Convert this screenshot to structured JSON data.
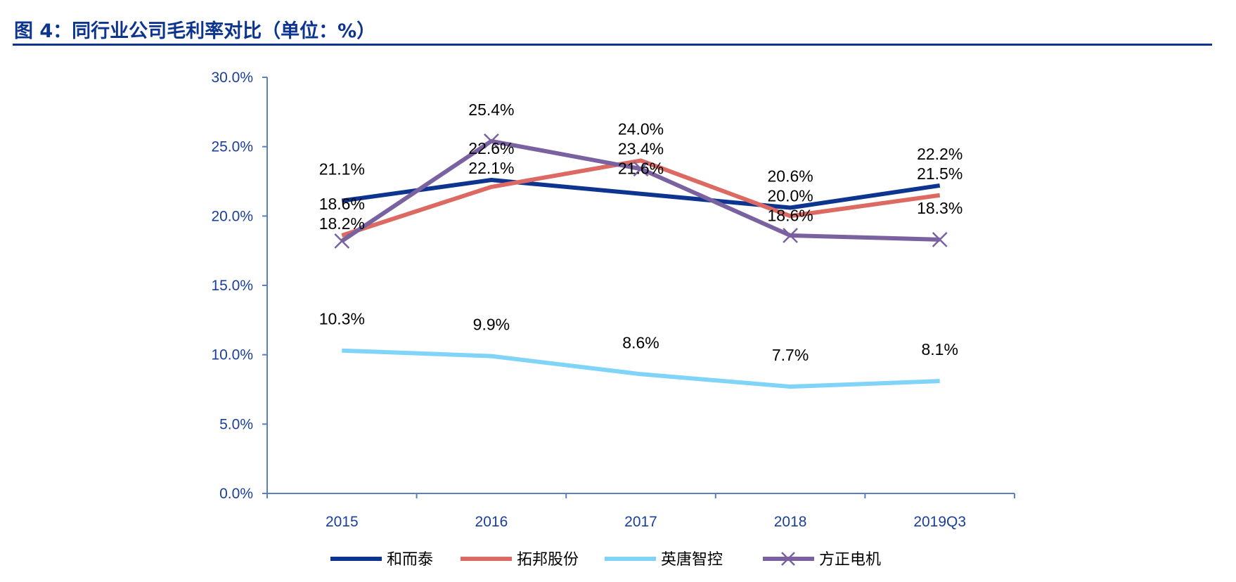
{
  "chart_data": {
    "type": "line",
    "title": "图 4：同行业公司毛利率对比（单位：%）",
    "categories": [
      "2015",
      "2016",
      "2017",
      "2018",
      "2019Q3"
    ],
    "ylim": [
      0,
      30
    ],
    "yticks": [
      "0.0%",
      "5.0%",
      "10.0%",
      "15.0%",
      "20.0%",
      "25.0%",
      "30.0%"
    ],
    "grid": false,
    "legend": "bottom",
    "series": [
      {
        "name": "和而泰",
        "color": "#0d3590",
        "marker": "none",
        "values": [
          21.1,
          22.6,
          21.6,
          20.6,
          22.2
        ],
        "labels": [
          "21.1%",
          "22.6%",
          "21.6%",
          "20.6%",
          "22.2%"
        ]
      },
      {
        "name": "拓邦股份",
        "color": "#dc6a62",
        "marker": "none",
        "values": [
          18.6,
          22.1,
          24.0,
          20.0,
          21.5
        ],
        "labels": [
          "18.6%",
          "22.1%",
          "24.0%",
          "20.0%",
          "21.5%"
        ]
      },
      {
        "name": "英唐智控",
        "color": "#80d4f8",
        "marker": "none",
        "values": [
          10.3,
          9.9,
          8.6,
          7.7,
          8.1
        ],
        "labels": [
          "10.3%",
          "9.9%",
          "8.6%",
          "7.7%",
          "8.1%"
        ]
      },
      {
        "name": "方正电机",
        "color": "#7a62a0",
        "marker": "x",
        "values": [
          18.2,
          25.4,
          23.4,
          18.6,
          18.3
        ],
        "labels": [
          "18.2%",
          "25.4%",
          "23.4%",
          "18.6%",
          "18.3%"
        ]
      }
    ]
  }
}
